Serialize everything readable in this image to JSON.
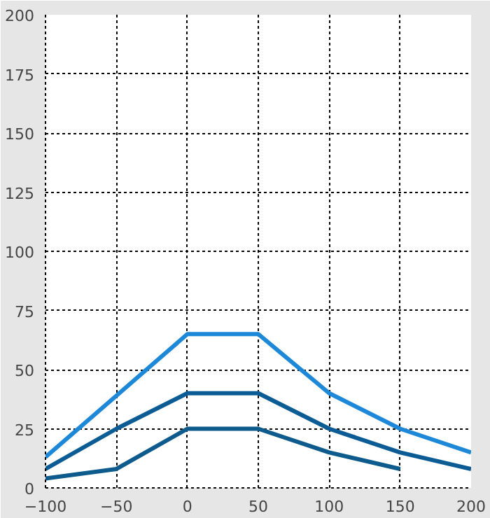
{
  "chart_data": {
    "type": "line",
    "x": [
      -100,
      -50,
      0,
      50,
      100,
      150,
      200
    ],
    "series": [
      {
        "color": "#1e88d8",
        "values": [
          13,
          39,
          65,
          65,
          40,
          25,
          15
        ]
      },
      {
        "color": "#0b5c94",
        "values": [
          8,
          25,
          40,
          40,
          25,
          15,
          8
        ]
      },
      {
        "color": "#0d5a8c",
        "values": [
          4,
          8,
          25,
          25,
          15,
          8,
          null
        ]
      }
    ],
    "xlim": [
      -100,
      200
    ],
    "xticks": [
      -100,
      -50,
      0,
      50,
      100,
      150,
      200
    ],
    "ylim": [
      0,
      200
    ],
    "yticks": [
      0,
      25,
      50,
      75,
      100,
      125,
      150,
      175,
      200
    ],
    "grid": true,
    "line_style": "solid"
  }
}
